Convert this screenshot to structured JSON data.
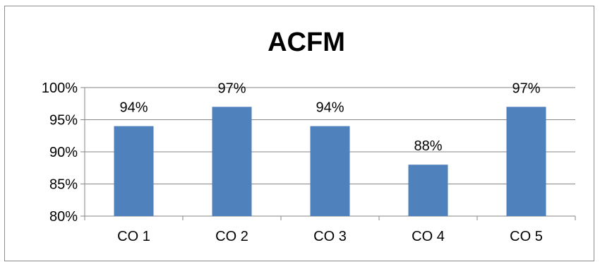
{
  "chart_data": {
    "type": "bar",
    "title": "ACFM",
    "categories": [
      "CO 1",
      "CO 2",
      "CO 3",
      "CO 4",
      "CO 5"
    ],
    "values": [
      94,
      97,
      94,
      88,
      97
    ],
    "data_labels": [
      "94%",
      "97%",
      "94%",
      "88%",
      "97%"
    ],
    "ylim": [
      80,
      100
    ],
    "yticks": [
      80,
      85,
      90,
      95,
      100
    ],
    "ytick_labels": [
      "80%",
      "85%",
      "90%",
      "95%",
      "100%"
    ],
    "bar_color": "#4f81bd",
    "grid": true,
    "legend": "none"
  }
}
